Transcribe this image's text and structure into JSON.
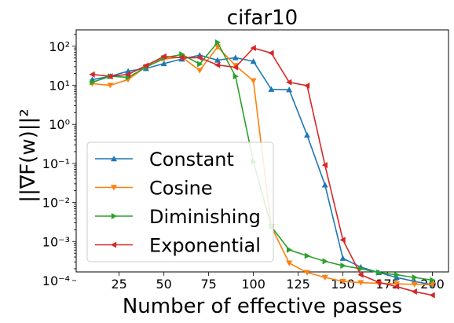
{
  "chart_data": {
    "type": "line",
    "title": "cifar10",
    "xlabel": "Number of effective passes",
    "ylabel": "||∇F(w)||²",
    "yscale": "log",
    "xlim": [
      1,
      209
    ],
    "ylim": [
      -3.78,
      2.42
    ],
    "xticks": [
      25,
      50,
      75,
      100,
      125,
      150,
      175,
      200
    ],
    "yticks": [
      {
        "exp": 2,
        "label": "10²"
      },
      {
        "exp": 1,
        "label": "10¹"
      },
      {
        "exp": 0,
        "label": "10⁰"
      },
      {
        "exp": -1,
        "label": "10⁻¹"
      },
      {
        "exp": -2,
        "label": "10⁻²"
      },
      {
        "exp": -3,
        "label": "10⁻³"
      },
      {
        "exp": -4,
        "label": "10⁻⁴"
      }
    ],
    "grid": false,
    "legend_position": "lower-left",
    "series": [
      {
        "name": "Constant",
        "color": "#1f77b4",
        "marker": "triangle-up",
        "x": [
          10,
          20,
          30,
          40,
          50,
          60,
          70,
          80,
          90,
          100,
          110,
          120,
          130,
          140,
          150,
          160,
          170,
          180,
          190,
          200
        ],
        "y": [
          14,
          17,
          23,
          27,
          36,
          47,
          59,
          44,
          51,
          41,
          7.9,
          7.7,
          0.53,
          0.028,
          0.00037,
          0.00022,
          0.00016,
          0.00012,
          9.5e-05,
          7.8e-05
        ]
      },
      {
        "name": "Cosine",
        "color": "#ff7f0e",
        "marker": "triangle-down",
        "x": [
          10,
          20,
          30,
          40,
          50,
          60,
          70,
          80,
          90,
          100,
          110,
          120,
          130,
          140,
          150,
          160,
          170,
          180,
          190,
          200
        ],
        "y": [
          11,
          10,
          14,
          30,
          47,
          53,
          24,
          96,
          32,
          13,
          0.0024,
          0.00028,
          0.00016,
          0.00012,
          9.5e-05,
          8.8e-05,
          8.5e-05,
          8.2e-05,
          8e-05,
          7.8e-05
        ]
      },
      {
        "name": "Diminishing",
        "color": "#2ca02c",
        "marker": "triangle-right",
        "x": [
          10,
          20,
          30,
          40,
          50,
          60,
          70,
          80,
          90,
          100,
          110,
          120,
          130,
          140,
          150,
          160,
          170,
          180,
          190,
          200
        ],
        "y": [
          12,
          17,
          16,
          29,
          50,
          62,
          35,
          125,
          17,
          0.11,
          0.0024,
          0.00061,
          0.00043,
          0.00031,
          0.00024,
          0.0002,
          0.00016,
          0.00014,
          0.00012,
          0.000102
        ]
      },
      {
        "name": "Exponential",
        "color": "#d62728",
        "marker": "triangle-left",
        "x": [
          10,
          20,
          30,
          40,
          50,
          60,
          70,
          80,
          90,
          100,
          110,
          120,
          130,
          140,
          150,
          160,
          170,
          180,
          190,
          200
        ],
        "y": [
          19,
          17,
          19,
          32,
          55,
          51,
          51,
          33,
          29,
          90,
          67,
          12,
          9.8,
          0.09,
          0.0011,
          0.00014,
          9e-05,
          7e-05,
          5.2e-05,
          4.2e-05
        ]
      }
    ]
  }
}
